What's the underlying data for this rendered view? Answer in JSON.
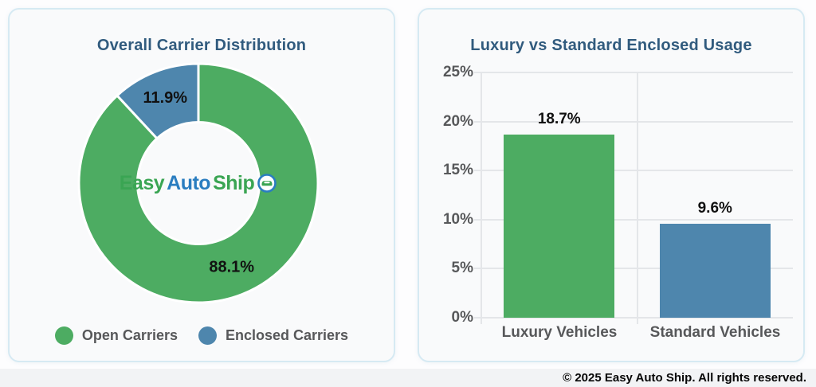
{
  "colors": {
    "green": "#4dac62",
    "blue": "#4e86ad",
    "title": "#315b7e",
    "axis_text": "#57585a",
    "value_text": "#111111",
    "gridline": "#e4e6e9",
    "slice_border": "#ffffff",
    "logo_green": "#3aa553",
    "logo_blue": "#2a7dc0"
  },
  "donut_card": {
    "title": "Overall Carrier Distribution",
    "legend": [
      {
        "label": "Open Carriers",
        "color": "#4dac62"
      },
      {
        "label": "Enclosed Carriers",
        "color": "#4e86ad"
      }
    ],
    "center_logo": {
      "parts": [
        {
          "text": "Easy",
          "color": "#3aa553"
        },
        {
          "text": "Auto",
          "color": "#2a7dc0"
        },
        {
          "text": "Ship",
          "color": "#3aa553"
        }
      ],
      "icon": "car-in-circle-icon"
    }
  },
  "bar_card": {
    "title": "Luxury vs Standard Enclosed Usage"
  },
  "footer": {
    "copyright": "© 2025 Easy Auto Ship. All rights reserved."
  },
  "chart_data": [
    {
      "type": "pie",
      "subtype": "donut",
      "title": "Overall Carrier Distribution",
      "labels": [
        "Open Carriers",
        "Enclosed Carriers"
      ],
      "values": [
        88.1,
        11.9
      ],
      "data_labels": [
        "88.1%",
        "11.9%"
      ],
      "colors": [
        "#4dac62",
        "#4e86ad"
      ],
      "start_angle_deg": 0,
      "direction": "clockwise",
      "inner_radius_ratio": 0.51,
      "legend_position": "bottom",
      "center_text": "EasyAutoShip"
    },
    {
      "type": "bar",
      "title": "Luxury vs Standard Enclosed Usage",
      "categories": [
        "Luxury Vehicles",
        "Standard Vehicles"
      ],
      "values": [
        18.7,
        9.6
      ],
      "data_labels": [
        "18.7%",
        "9.6%"
      ],
      "colors": [
        "#4dac62",
        "#4e86ad"
      ],
      "xlabel": "",
      "ylabel": "",
      "ylim": [
        0,
        25
      ],
      "ytick_values": [
        0,
        5,
        10,
        15,
        20,
        25
      ],
      "ytick_labels": [
        "0%",
        "5%",
        "10%",
        "15%",
        "20%",
        "25%"
      ],
      "grid": true,
      "legend_position": "none"
    }
  ]
}
